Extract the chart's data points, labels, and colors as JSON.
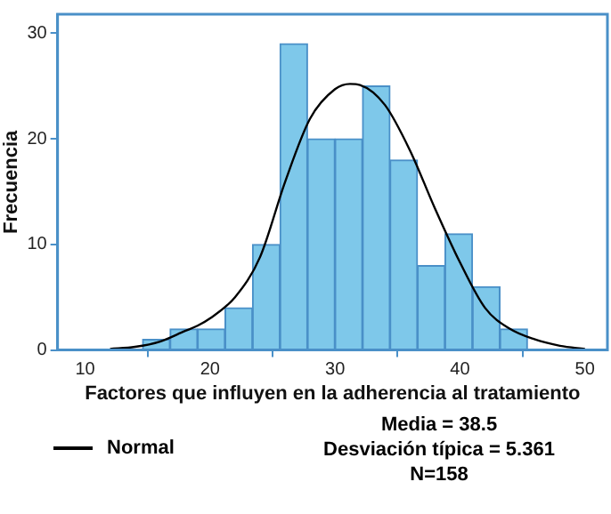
{
  "chart_data": {
    "type": "histogram",
    "xlabel": "Factores que influyen en la adherencia al tratamiento",
    "ylabel": "Frecuencia",
    "bins": [
      14.6,
      16.8,
      19.0,
      21.2,
      23.4,
      25.6,
      27.8,
      30.0,
      32.2,
      34.4,
      36.6,
      38.8,
      41.0,
      43.2,
      45.4
    ],
    "values": [
      1,
      2,
      2,
      4,
      10,
      29,
      20,
      20,
      25,
      18,
      8,
      11,
      6,
      2
    ],
    "color": "#7ec8ea",
    "series": [
      {
        "name": "Normal",
        "type": "line",
        "color": "#000000",
        "x": [
          12,
          14,
          16,
          18,
          19,
          20,
          22,
          24,
          26,
          28,
          30,
          31.2,
          32,
          34,
          36,
          38,
          40,
          42,
          44,
          46,
          48,
          50
        ],
        "values": [
          0.1,
          0.3,
          0.8,
          1.8,
          2.3,
          3,
          5,
          8.8,
          15.9,
          21.9,
          24.7,
          25.2,
          25.1,
          23.2,
          18.9,
          13.4,
          8.3,
          4,
          2,
          1,
          0.4,
          0.1
        ]
      }
    ],
    "xlim": [
      7.8,
      51.8
    ],
    "ylim": [
      0,
      31.8
    ],
    "xticks": [
      10,
      20,
      30,
      40,
      50
    ],
    "yticks": [
      0,
      10,
      20,
      30
    ],
    "grid": false,
    "legend": "bottom left",
    "line_style": "solid",
    "marker": "none",
    "annotations": [
      "Media = 38.5",
      "Desviación típica = 5.361",
      "N=158"
    ]
  }
}
